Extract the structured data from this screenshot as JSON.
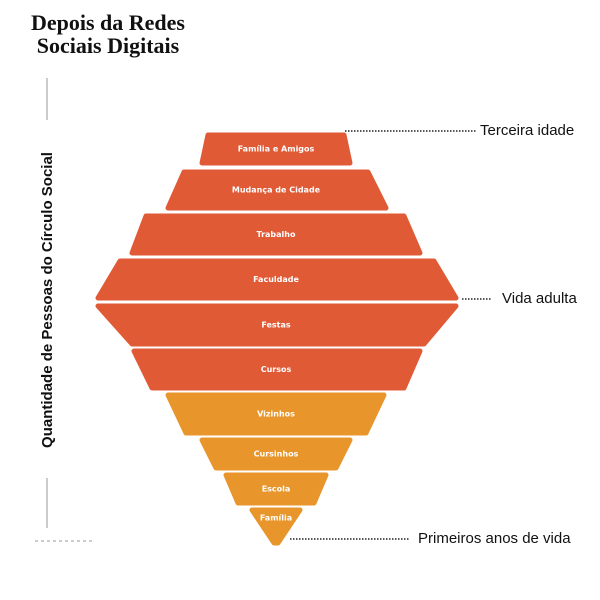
{
  "header": {
    "title_lines": [
      "Depois da Redes",
      "Sociais Digitais"
    ]
  },
  "axis_label": "Quantidade de Pessoas do Círculo Social",
  "layers": [
    {
      "label": "Família e Amigos"
    },
    {
      "label": "Mudança de Cidade"
    },
    {
      "label": "Trabalho"
    },
    {
      "label": "Faculdade"
    },
    {
      "label": "Festas"
    },
    {
      "label": "Cursos"
    },
    {
      "label": "Vizinhos"
    },
    {
      "label": "Cursinhos"
    },
    {
      "label": "Escola"
    },
    {
      "label": "Família"
    }
  ],
  "annotations": [
    {
      "label": "Terceira idade"
    },
    {
      "label": "Vida adulta"
    },
    {
      "label": "Primeiros anos de vida"
    }
  ]
}
